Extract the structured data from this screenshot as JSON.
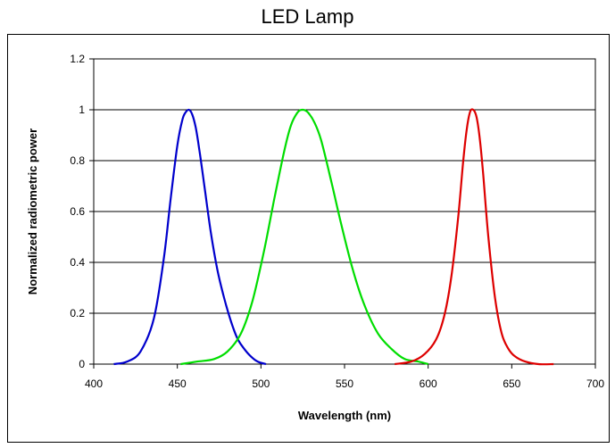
{
  "chart_data": {
    "type": "line",
    "title": "LED Lamp",
    "xlabel": "Wavelength (nm)",
    "ylabel": "Normalized radiometric power",
    "xlim": [
      400,
      700
    ],
    "ylim": [
      0,
      1.2
    ],
    "x_ticks": [
      "400",
      "450",
      "500",
      "550",
      "600",
      "650",
      "700"
    ],
    "y_ticks": [
      "0",
      "0.2",
      "0.4",
      "0.6",
      "0.8",
      "1",
      "1.2"
    ],
    "grid": "horizontal",
    "legend": "none",
    "series": [
      {
        "color": "#0000cc",
        "x": [
          412,
          420,
          428,
          436,
          442,
          446,
          450,
          453,
          455,
          457,
          459,
          461,
          463,
          466,
          470,
          474,
          478,
          482,
          486,
          490,
          494,
          498,
          503
        ],
        "y": [
          0.0,
          0.01,
          0.05,
          0.18,
          0.42,
          0.65,
          0.86,
          0.96,
          0.99,
          1.0,
          0.98,
          0.93,
          0.85,
          0.71,
          0.52,
          0.37,
          0.26,
          0.17,
          0.1,
          0.06,
          0.03,
          0.01,
          0.0
        ]
      },
      {
        "color": "#00dd00",
        "x": [
          452,
          462,
          472,
          480,
          488,
          495,
          502,
          508,
          514,
          518,
          522,
          525,
          528,
          532,
          536,
          542,
          548,
          555,
          562,
          570,
          578,
          586,
          594,
          600
        ],
        "y": [
          0.0,
          0.01,
          0.02,
          0.05,
          0.12,
          0.25,
          0.45,
          0.65,
          0.84,
          0.94,
          0.99,
          1.0,
          0.99,
          0.95,
          0.88,
          0.72,
          0.55,
          0.37,
          0.23,
          0.12,
          0.06,
          0.02,
          0.01,
          0.0
        ]
      },
      {
        "color": "#dd0000",
        "x": [
          580,
          590,
          598,
          605,
          610,
          614,
          618,
          621,
          623,
          625,
          627,
          629,
          631,
          633,
          636,
          640,
          644,
          648,
          652,
          658,
          666,
          675
        ],
        "y": [
          0.0,
          0.01,
          0.04,
          0.1,
          0.2,
          0.35,
          0.58,
          0.8,
          0.92,
          0.99,
          1.0,
          0.97,
          0.88,
          0.74,
          0.5,
          0.26,
          0.12,
          0.06,
          0.03,
          0.01,
          0.0,
          0.0
        ]
      }
    ]
  }
}
